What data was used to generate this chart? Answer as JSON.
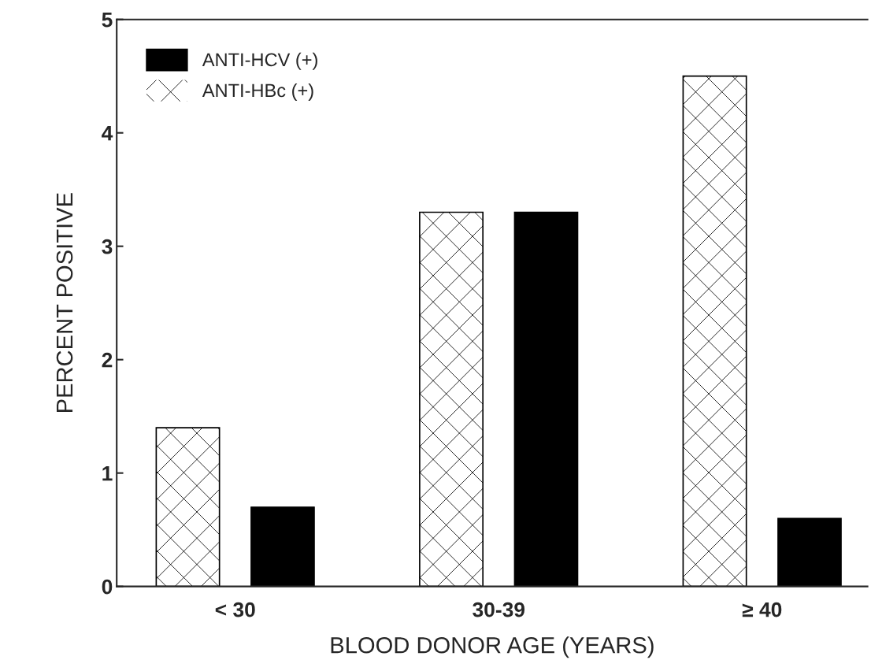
{
  "chart_data": {
    "type": "bar",
    "xlabel": "BLOOD DONOR AGE (YEARS)",
    "ylabel": "PERCENT POSITIVE",
    "categories": [
      "< 30",
      "30-39",
      "≥ 40"
    ],
    "series": [
      {
        "name": "ANTI-HBc (+)",
        "color": "#ffffff",
        "values": [
          1.4,
          3.3,
          4.5
        ]
      },
      {
        "name": "ANTI-HCV (+)",
        "color": "#000000",
        "values": [
          0.7,
          3.3,
          0.6
        ]
      }
    ],
    "ylim": [
      0,
      5
    ],
    "yticks": [
      0,
      1,
      2,
      3,
      4,
      5
    ],
    "legend": "top left",
    "grid": false
  }
}
